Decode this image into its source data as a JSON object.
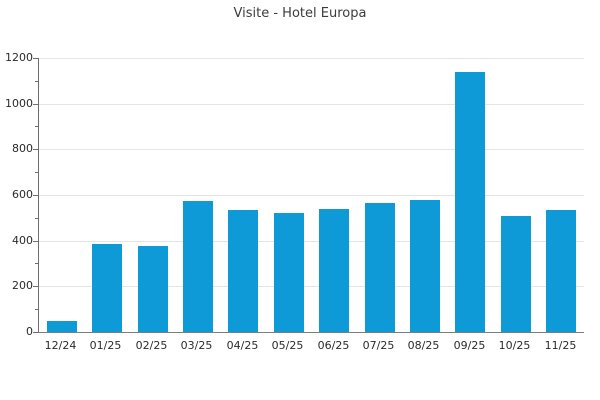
{
  "chart_data": {
    "type": "bar",
    "title": "Visite - Hotel Europa",
    "categories": [
      "12/24",
      "01/25",
      "02/25",
      "03/25",
      "04/25",
      "05/25",
      "06/25",
      "07/25",
      "08/25",
      "09/25",
      "10/25",
      "11/25"
    ],
    "values": [
      48,
      385,
      375,
      575,
      535,
      520,
      540,
      565,
      578,
      1140,
      510,
      535
    ],
    "xlabel": "",
    "ylabel": "",
    "ylim": [
      0,
      1200
    ],
    "ytick_step": 200,
    "yminor_step": 100,
    "ytick_labels": [
      "0",
      "200",
      "400",
      "600",
      "800",
      "1000",
      "1200"
    ],
    "grid": true,
    "legend": "none",
    "colors": {
      "bar": "#0d9ad7",
      "grid": "#e4e4e4",
      "spine": "#6e6e6e",
      "tick_label": "#2b2b2b",
      "title": "#3c3c3c",
      "background": "#ffffff"
    }
  }
}
